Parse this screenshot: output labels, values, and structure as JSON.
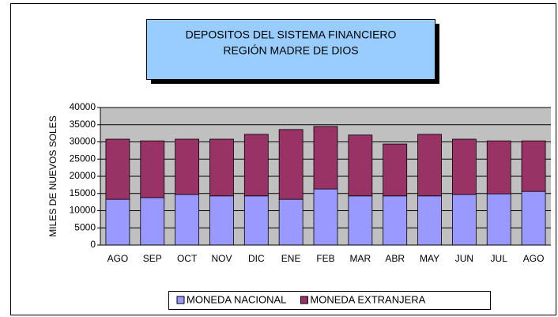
{
  "chart_data": {
    "type": "bar",
    "stacked": true,
    "title_lines": [
      "DEPOSITOS DEL SISTEMA FINANCIERO",
      "REGIÓN MADRE DE DIOS"
    ],
    "y_label": "MILES DE NUEVOS SOLES",
    "categories": [
      "AGO",
      "SEP",
      "OCT",
      "NOV",
      "DIC",
      "ENE",
      "FEB",
      "MAR",
      "ABR",
      "MAY",
      "JUN",
      "JUL",
      "AGO"
    ],
    "series": [
      {
        "name": "MONEDA NACIONAL",
        "color": "#9999ff",
        "values": [
          13300,
          13800,
          14700,
          14300,
          14300,
          13300,
          16300,
          14300,
          14300,
          14300,
          14700,
          14900,
          15600
        ]
      },
      {
        "name": "MONEDA EXTRANJERA",
        "color": "#993366",
        "values": [
          17500,
          16500,
          16100,
          16500,
          17900,
          20300,
          18200,
          17700,
          15100,
          17900,
          16100,
          15400,
          14700
        ]
      }
    ],
    "ylim": [
      0,
      40000
    ],
    "yticks": [
      0,
      5000,
      10000,
      15000,
      20000,
      25000,
      30000,
      35000,
      40000
    ],
    "grid": true
  }
}
